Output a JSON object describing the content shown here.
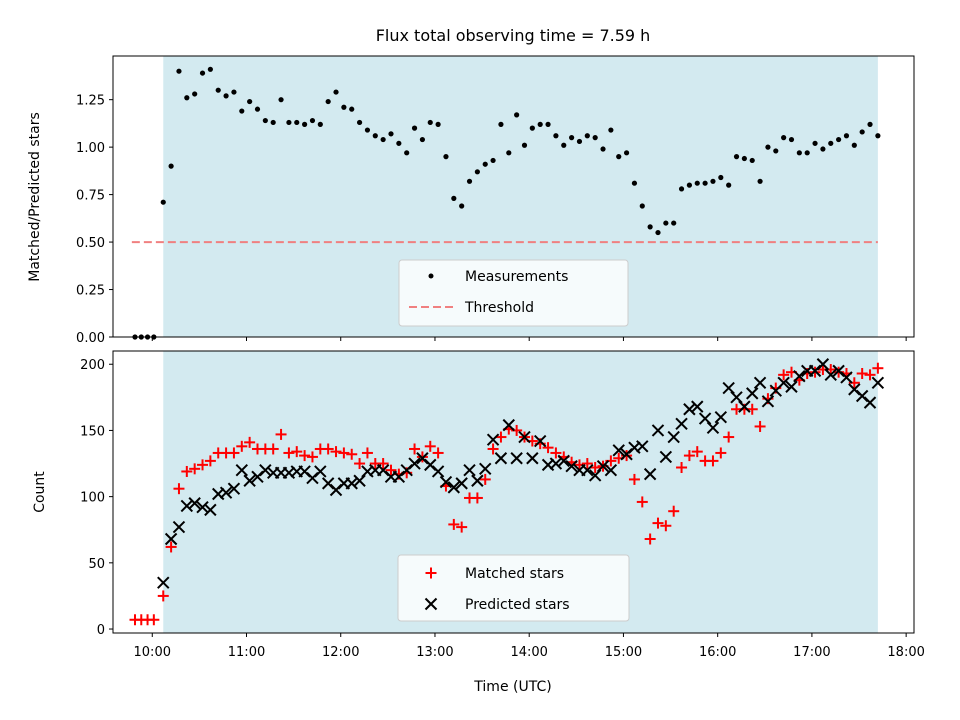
{
  "chart_data": {
    "title": "Flux total observing time = 7.59 h",
    "xlabel": "Time (UTC)",
    "x_ticks": [
      "10:00",
      "11:00",
      "12:00",
      "13:00",
      "14:00",
      "15:00",
      "16:00",
      "17:00",
      "18:00"
    ],
    "x_range": [
      "09:35",
      "18:05"
    ],
    "observing_window": [
      "10:07",
      "17:42"
    ],
    "colors": {
      "shade": "#d3eaf0",
      "measurements": "#000000",
      "threshold": "#f08080",
      "matched": "#ff0000",
      "predicted": "#000000"
    },
    "top": {
      "type": "scatter",
      "ylabel": "Matched/Predicted stars",
      "ylim": [
        0,
        1.48
      ],
      "y_ticks": [
        "0.00",
        "0.25",
        "0.50",
        "0.75",
        "1.00",
        "1.25"
      ],
      "threshold": 0.5,
      "threshold_x": [
        "09:47",
        "17:42"
      ],
      "legend": [
        "Measurements",
        "Threshold"
      ],
      "legend_position": "lower center",
      "measurements": [
        [
          "09:49",
          0.0
        ],
        [
          "09:53",
          0.0
        ],
        [
          "09:57",
          0.0
        ],
        [
          "10:01",
          0.0
        ],
        [
          "10:07",
          0.71
        ],
        [
          "10:12",
          0.9
        ],
        [
          "10:17",
          1.4
        ],
        [
          "10:22",
          1.26
        ],
        [
          "10:27",
          1.28
        ],
        [
          "10:32",
          1.39
        ],
        [
          "10:37",
          1.41
        ],
        [
          "10:42",
          1.3
        ],
        [
          "10:47",
          1.27
        ],
        [
          "10:52",
          1.29
        ],
        [
          "10:57",
          1.19
        ],
        [
          "11:02",
          1.24
        ],
        [
          "11:07",
          1.2
        ],
        [
          "11:12",
          1.14
        ],
        [
          "11:17",
          1.13
        ],
        [
          "11:22",
          1.25
        ],
        [
          "11:27",
          1.13
        ],
        [
          "11:32",
          1.13
        ],
        [
          "11:37",
          1.12
        ],
        [
          "11:42",
          1.14
        ],
        [
          "11:47",
          1.12
        ],
        [
          "11:52",
          1.24
        ],
        [
          "11:57",
          1.29
        ],
        [
          "12:02",
          1.21
        ],
        [
          "12:07",
          1.2
        ],
        [
          "12:12",
          1.13
        ],
        [
          "12:17",
          1.09
        ],
        [
          "12:22",
          1.06
        ],
        [
          "12:27",
          1.04
        ],
        [
          "12:32",
          1.07
        ],
        [
          "12:37",
          1.02
        ],
        [
          "12:42",
          0.97
        ],
        [
          "12:47",
          1.1
        ],
        [
          "12:52",
          1.04
        ],
        [
          "12:57",
          1.13
        ],
        [
          "13:02",
          1.12
        ],
        [
          "13:07",
          0.95
        ],
        [
          "13:12",
          0.73
        ],
        [
          "13:17",
          0.69
        ],
        [
          "13:22",
          0.82
        ],
        [
          "13:27",
          0.87
        ],
        [
          "13:32",
          0.91
        ],
        [
          "13:37",
          0.93
        ],
        [
          "13:42",
          1.12
        ],
        [
          "13:47",
          0.97
        ],
        [
          "13:52",
          1.17
        ],
        [
          "13:57",
          1.01
        ],
        [
          "14:02",
          1.1
        ],
        [
          "14:07",
          1.12
        ],
        [
          "14:12",
          1.12
        ],
        [
          "14:17",
          1.06
        ],
        [
          "14:22",
          1.01
        ],
        [
          "14:27",
          1.05
        ],
        [
          "14:32",
          1.03
        ],
        [
          "14:37",
          1.06
        ],
        [
          "14:42",
          1.05
        ],
        [
          "14:47",
          0.99
        ],
        [
          "14:52",
          1.09
        ],
        [
          "14:57",
          0.95
        ],
        [
          "15:02",
          0.97
        ],
        [
          "15:07",
          0.81
        ],
        [
          "15:12",
          0.69
        ],
        [
          "15:17",
          0.58
        ],
        [
          "15:22",
          0.55
        ],
        [
          "15:27",
          0.6
        ],
        [
          "15:32",
          0.6
        ],
        [
          "15:37",
          0.78
        ],
        [
          "15:42",
          0.8
        ],
        [
          "15:47",
          0.81
        ],
        [
          "15:52",
          0.81
        ],
        [
          "15:57",
          0.82
        ],
        [
          "16:02",
          0.84
        ],
        [
          "16:07",
          0.8
        ],
        [
          "16:12",
          0.95
        ],
        [
          "16:17",
          0.94
        ],
        [
          "16:22",
          0.93
        ],
        [
          "16:27",
          0.82
        ],
        [
          "16:32",
          1.0
        ],
        [
          "16:37",
          0.98
        ],
        [
          "16:42",
          1.05
        ],
        [
          "16:47",
          1.04
        ],
        [
          "16:52",
          0.97
        ],
        [
          "16:57",
          0.97
        ],
        [
          "17:02",
          1.02
        ],
        [
          "17:07",
          0.99
        ],
        [
          "17:12",
          1.02
        ],
        [
          "17:17",
          1.04
        ],
        [
          "17:22",
          1.06
        ],
        [
          "17:27",
          1.01
        ],
        [
          "17:32",
          1.08
        ],
        [
          "17:37",
          1.12
        ],
        [
          "17:42",
          1.06
        ]
      ]
    },
    "bottom": {
      "type": "scatter",
      "ylabel": "Count",
      "ylim": [
        -3,
        210
      ],
      "y_ticks": [
        "0",
        "50",
        "100",
        "150",
        "200"
      ],
      "legend": [
        "Matched stars",
        "Predicted stars"
      ],
      "legend_position": "lower center",
      "matched": [
        [
          "09:49",
          7
        ],
        [
          "09:53",
          7
        ],
        [
          "09:57",
          7
        ],
        [
          "10:01",
          7
        ],
        [
          "10:07",
          25
        ],
        [
          "10:12",
          62
        ],
        [
          "10:17",
          106
        ],
        [
          "10:22",
          119
        ],
        [
          "10:27",
          121
        ],
        [
          "10:32",
          124
        ],
        [
          "10:37",
          127
        ],
        [
          "10:42",
          133
        ],
        [
          "10:47",
          133
        ],
        [
          "10:52",
          133
        ],
        [
          "10:57",
          138
        ],
        [
          "11:02",
          141
        ],
        [
          "11:07",
          136
        ],
        [
          "11:12",
          136
        ],
        [
          "11:17",
          136
        ],
        [
          "11:22",
          147
        ],
        [
          "11:27",
          133
        ],
        [
          "11:32",
          134
        ],
        [
          "11:37",
          131
        ],
        [
          "11:42",
          130
        ],
        [
          "11:47",
          136
        ],
        [
          "11:52",
          136
        ],
        [
          "11:57",
          134
        ],
        [
          "12:02",
          133
        ],
        [
          "12:07",
          132
        ],
        [
          "12:12",
          125
        ],
        [
          "12:17",
          133
        ],
        [
          "12:22",
          125
        ],
        [
          "12:27",
          125
        ],
        [
          "12:32",
          120
        ],
        [
          "12:37",
          117
        ],
        [
          "12:42",
          118
        ],
        [
          "12:47",
          136
        ],
        [
          "12:52",
          130
        ],
        [
          "12:57",
          138
        ],
        [
          "13:02",
          133
        ],
        [
          "13:07",
          108
        ],
        [
          "13:12",
          79
        ],
        [
          "13:17",
          77
        ],
        [
          "13:22",
          99
        ],
        [
          "13:27",
          99
        ],
        [
          "13:32",
          113
        ],
        [
          "13:37",
          136
        ],
        [
          "13:42",
          145
        ],
        [
          "13:47",
          151
        ],
        [
          "13:52",
          150
        ],
        [
          "13:57",
          145
        ],
        [
          "14:02",
          142
        ],
        [
          "14:07",
          140
        ],
        [
          "14:12",
          137
        ],
        [
          "14:17",
          133
        ],
        [
          "14:22",
          130
        ],
        [
          "14:27",
          126
        ],
        [
          "14:32",
          124
        ],
        [
          "14:37",
          125
        ],
        [
          "14:42",
          122
        ],
        [
          "14:47",
          123
        ],
        [
          "14:52",
          127
        ],
        [
          "14:57",
          129
        ],
        [
          "15:02",
          131
        ],
        [
          "15:07",
          113
        ],
        [
          "15:12",
          96
        ],
        [
          "15:17",
          68
        ],
        [
          "15:22",
          80
        ],
        [
          "15:27",
          78
        ],
        [
          "15:32",
          89
        ],
        [
          "15:37",
          122
        ],
        [
          "15:42",
          131
        ],
        [
          "15:47",
          134
        ],
        [
          "15:52",
          127
        ],
        [
          "15:57",
          127
        ],
        [
          "16:02",
          133
        ],
        [
          "16:07",
          145
        ],
        [
          "16:12",
          166
        ],
        [
          "16:17",
          166
        ],
        [
          "16:22",
          166
        ],
        [
          "16:27",
          153
        ],
        [
          "16:32",
          174
        ],
        [
          "16:37",
          182
        ],
        [
          "16:42",
          192
        ],
        [
          "16:47",
          194
        ],
        [
          "16:52",
          188
        ],
        [
          "16:57",
          193
        ],
        [
          "17:02",
          194
        ],
        [
          "17:07",
          196
        ],
        [
          "17:12",
          196
        ],
        [
          "17:17",
          194
        ],
        [
          "17:22",
          193
        ],
        [
          "17:27",
          186
        ],
        [
          "17:32",
          193
        ],
        [
          "17:37",
          192
        ],
        [
          "17:42",
          197
        ]
      ],
      "predicted": [
        [
          "10:07",
          35
        ],
        [
          "10:12",
          68
        ],
        [
          "10:17",
          77
        ],
        [
          "10:22",
          93
        ],
        [
          "10:27",
          95
        ],
        [
          "10:32",
          92
        ],
        [
          "10:37",
          90
        ],
        [
          "10:42",
          102
        ],
        [
          "10:47",
          103
        ],
        [
          "10:52",
          106
        ],
        [
          "10:57",
          120
        ],
        [
          "11:02",
          112
        ],
        [
          "11:07",
          115
        ],
        [
          "11:12",
          120
        ],
        [
          "11:17",
          118
        ],
        [
          "11:22",
          118
        ],
        [
          "11:27",
          118
        ],
        [
          "11:32",
          119
        ],
        [
          "11:37",
          119
        ],
        [
          "11:42",
          114
        ],
        [
          "11:47",
          119
        ],
        [
          "11:52",
          110
        ],
        [
          "11:57",
          105
        ],
        [
          "12:02",
          110
        ],
        [
          "12:07",
          110
        ],
        [
          "12:12",
          112
        ],
        [
          "12:17",
          119
        ],
        [
          "12:22",
          120
        ],
        [
          "12:27",
          120
        ],
        [
          "12:32",
          115
        ],
        [
          "12:37",
          115
        ],
        [
          "12:42",
          120
        ],
        [
          "12:47",
          125
        ],
        [
          "12:52",
          129
        ],
        [
          "12:57",
          124
        ],
        [
          "13:02",
          119
        ],
        [
          "13:07",
          111
        ],
        [
          "13:12",
          107
        ],
        [
          "13:17",
          110
        ],
        [
          "13:22",
          120
        ],
        [
          "13:27",
          112
        ],
        [
          "13:32",
          121
        ],
        [
          "13:37",
          143
        ],
        [
          "13:42",
          129
        ],
        [
          "13:47",
          154
        ],
        [
          "13:52",
          129
        ],
        [
          "13:57",
          145
        ],
        [
          "14:02",
          129
        ],
        [
          "14:07",
          142
        ],
        [
          "14:12",
          124
        ],
        [
          "14:17",
          125
        ],
        [
          "14:22",
          127
        ],
        [
          "14:27",
          123
        ],
        [
          "14:32",
          120
        ],
        [
          "14:37",
          120
        ],
        [
          "14:42",
          116
        ],
        [
          "14:47",
          123
        ],
        [
          "14:52",
          120
        ],
        [
          "14:57",
          135
        ],
        [
          "15:02",
          132
        ],
        [
          "15:07",
          137
        ],
        [
          "15:12",
          138
        ],
        [
          "15:17",
          117
        ],
        [
          "15:22",
          150
        ],
        [
          "15:27",
          130
        ],
        [
          "15:32",
          145
        ],
        [
          "15:37",
          155
        ],
        [
          "15:42",
          166
        ],
        [
          "15:47",
          168
        ],
        [
          "15:52",
          159
        ],
        [
          "15:57",
          152
        ],
        [
          "16:02",
          160
        ],
        [
          "16:07",
          182
        ],
        [
          "16:12",
          175
        ],
        [
          "16:17",
          168
        ],
        [
          "16:22",
          178
        ],
        [
          "16:27",
          186
        ],
        [
          "16:32",
          172
        ],
        [
          "16:37",
          180
        ],
        [
          "16:42",
          186
        ],
        [
          "16:47",
          183
        ],
        [
          "16:52",
          191
        ],
        [
          "16:57",
          195
        ],
        [
          "17:02",
          195
        ],
        [
          "17:07",
          200
        ],
        [
          "17:12",
          192
        ],
        [
          "17:17",
          195
        ],
        [
          "17:22",
          190
        ],
        [
          "17:27",
          181
        ],
        [
          "17:32",
          176
        ],
        [
          "17:37",
          171
        ],
        [
          "17:42",
          186
        ]
      ]
    }
  }
}
